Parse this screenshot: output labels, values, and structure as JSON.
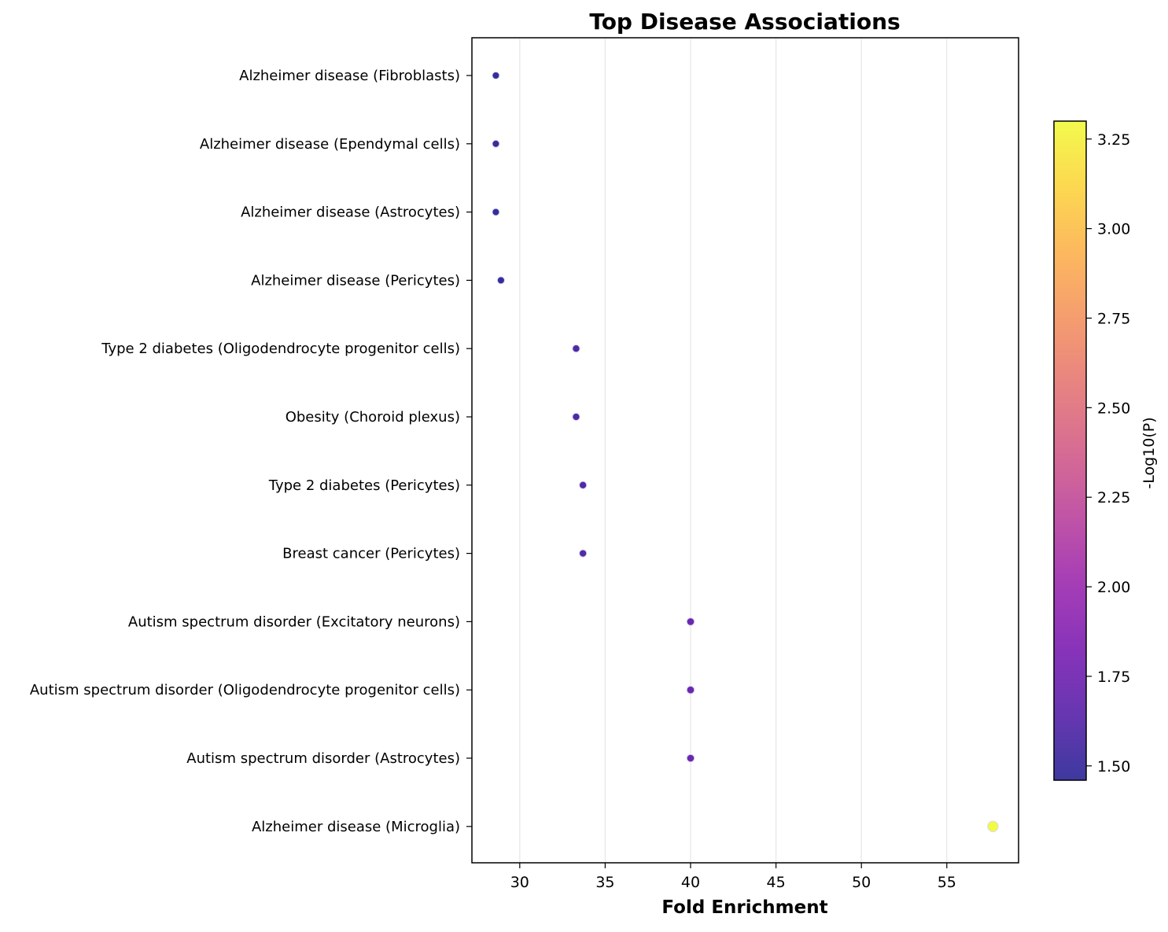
{
  "chart_data": {
    "type": "scatter",
    "title": "Top Disease Associations",
    "xlabel": "Fold Enrichment",
    "ylabel": "",
    "xlim": [
      27.2,
      59.2
    ],
    "xticks": [
      30,
      35,
      40,
      45,
      50,
      55
    ],
    "grid": "vertical",
    "colormap": "plasma",
    "colorbar": {
      "label": "-Log10(P)",
      "range": [
        1.46,
        3.3
      ],
      "ticks": [
        "1.50",
        "1.75",
        "2.00",
        "2.25",
        "2.50",
        "2.75",
        "3.00",
        "3.25"
      ],
      "tick_values": [
        1.5,
        1.75,
        2.0,
        2.25,
        2.5,
        2.75,
        3.0,
        3.25
      ]
    },
    "categories": [
      "Alzheimer disease (Fibroblasts)",
      "Alzheimer disease (Ependymal cells)",
      "Alzheimer disease (Astrocytes)",
      "Alzheimer disease (Pericytes)",
      "Type 2 diabetes (Oligodendrocyte progenitor cells)",
      "Obesity (Choroid plexus)",
      "Type 2 diabetes (Pericytes)",
      "Breast cancer (Pericytes)",
      "Autism spectrum disorder (Excitatory neurons)",
      "Autism spectrum disorder (Oligodendrocyte progenitor cells)",
      "Autism spectrum disorder (Astrocytes)",
      "Alzheimer disease (Microglia)"
    ],
    "points": [
      {
        "category": "Alzheimer disease (Fibroblasts)",
        "x": 28.6,
        "neg_log10_p": 1.48
      },
      {
        "category": "Alzheimer disease (Ependymal cells)",
        "x": 28.6,
        "neg_log10_p": 1.48
      },
      {
        "category": "Alzheimer disease (Astrocytes)",
        "x": 28.6,
        "neg_log10_p": 1.48
      },
      {
        "category": "Alzheimer disease (Pericytes)",
        "x": 28.9,
        "neg_log10_p": 1.49
      },
      {
        "category": "Type 2 diabetes (Oligodendrocyte progenitor cells)",
        "x": 33.3,
        "neg_log10_p": 1.58
      },
      {
        "category": "Obesity (Choroid plexus)",
        "x": 33.3,
        "neg_log10_p": 1.58
      },
      {
        "category": "Type 2 diabetes (Pericytes)",
        "x": 33.7,
        "neg_log10_p": 1.59
      },
      {
        "category": "Breast cancer (Pericytes)",
        "x": 33.7,
        "neg_log10_p": 1.59
      },
      {
        "category": "Autism spectrum disorder (Excitatory neurons)",
        "x": 40.0,
        "neg_log10_p": 1.72
      },
      {
        "category": "Autism spectrum disorder (Oligodendrocyte progenitor cells)",
        "x": 40.0,
        "neg_log10_p": 1.72
      },
      {
        "category": "Autism spectrum disorder (Astrocytes)",
        "x": 40.0,
        "neg_log10_p": 1.72
      },
      {
        "category": "Alzheimer disease (Microglia)",
        "x": 57.7,
        "neg_log10_p": 3.3
      }
    ]
  }
}
